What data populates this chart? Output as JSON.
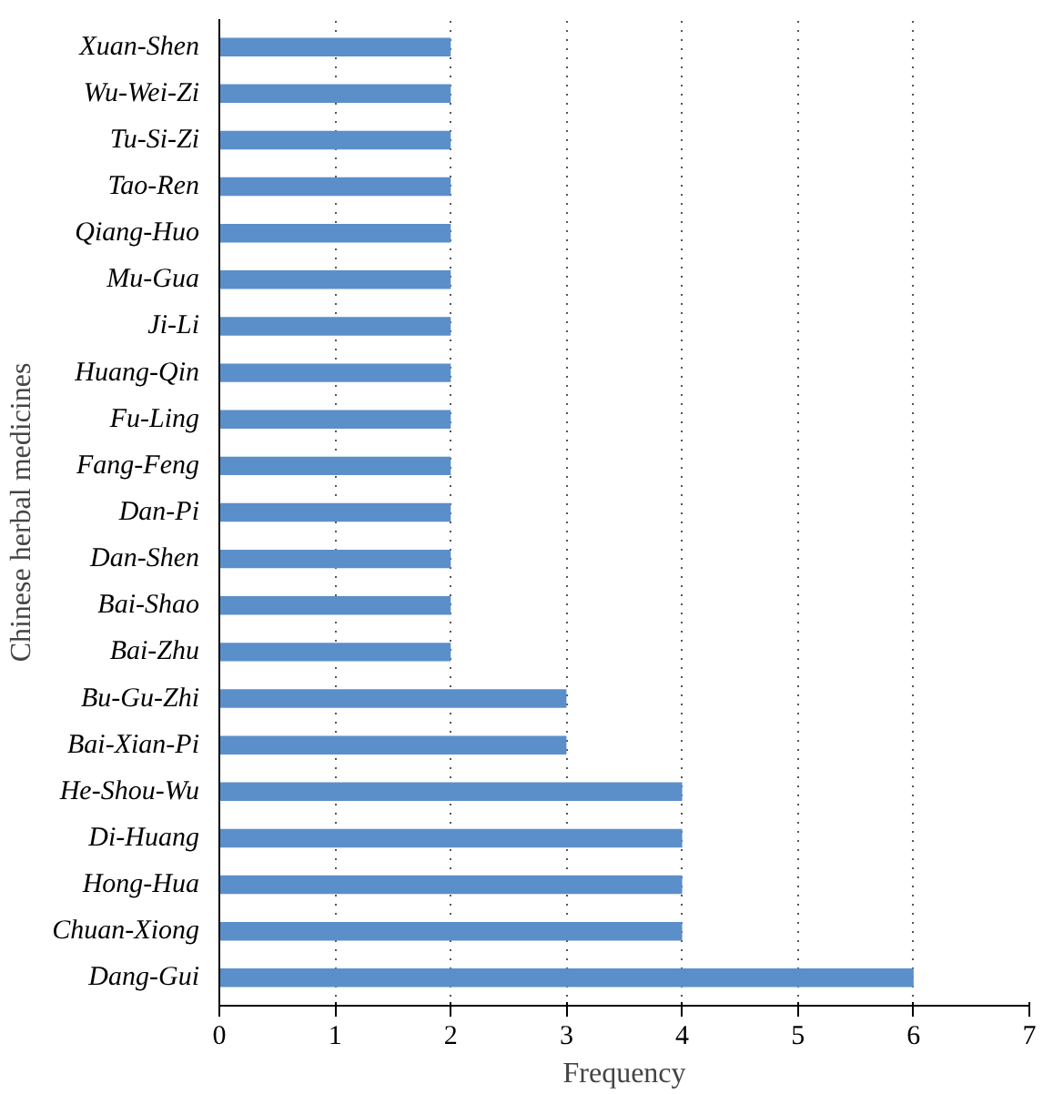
{
  "chart_data": {
    "type": "bar",
    "orientation": "horizontal",
    "xlabel": "Frequency",
    "ylabel": "Chinese herbal medicines",
    "categories": [
      "Xuan-Shen",
      "Wu-Wei-Zi",
      "Tu-Si-Zi",
      "Tao-Ren",
      "Qiang-Huo",
      "Mu-Gua",
      "Ji-Li",
      "Huang-Qin",
      "Fu-Ling",
      "Fang-Feng",
      "Dan-Pi",
      "Dan-Shen",
      "Bai-Shao",
      "Bai-Zhu",
      "Bu-Gu-Zhi",
      "Bai-Xian-Pi",
      "He-Shou-Wu",
      "Di-Huang",
      "Hong-Hua",
      "Chuan-Xiong",
      "Dang-Gui"
    ],
    "values": [
      2,
      2,
      2,
      2,
      2,
      2,
      2,
      2,
      2,
      2,
      2,
      2,
      2,
      2,
      3,
      3,
      4,
      4,
      4,
      4,
      6
    ],
    "color": "#5b8fc9",
    "xlim": [
      0,
      7
    ],
    "xticks": [
      0,
      1,
      2,
      3,
      4,
      5,
      6,
      7
    ],
    "grid": "x"
  }
}
